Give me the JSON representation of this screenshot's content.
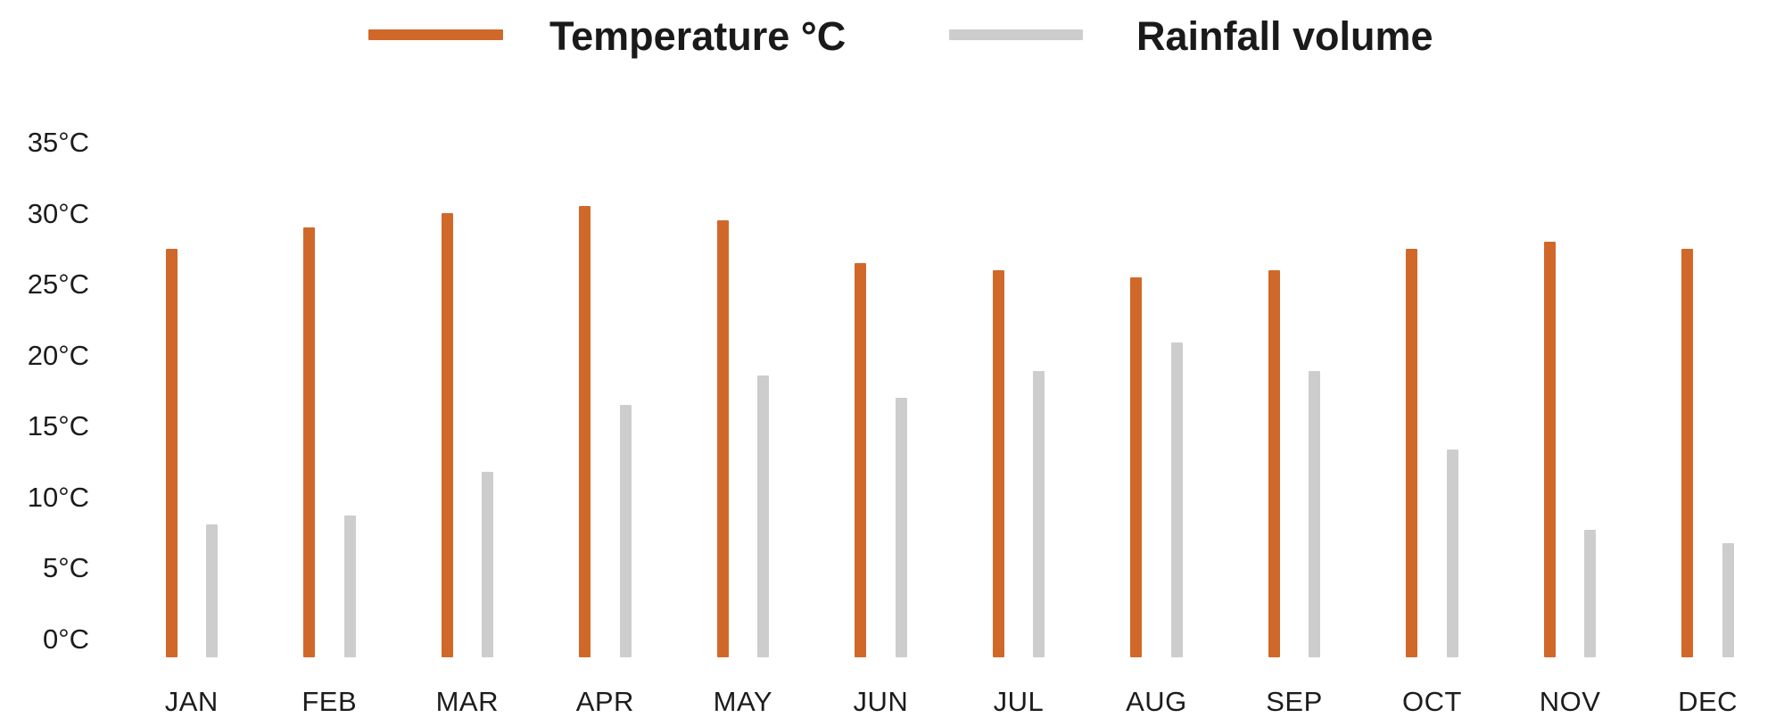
{
  "chart_data": {
    "type": "bar",
    "title": "",
    "categories": [
      "JAN",
      "FEB",
      "MAR",
      "APR",
      "MAY",
      "JUN",
      "JUL",
      "AUG",
      "SEP",
      "OCT",
      "NOV",
      "DEC"
    ],
    "series": [
      {
        "name": "Temperature °C",
        "color": "#d0682a",
        "unit": "°C",
        "values": [
          27.5,
          29,
          30,
          30.5,
          29.5,
          26.5,
          26,
          25.5,
          26,
          27.5,
          28,
          27.5
        ]
      },
      {
        "name": "Rainfall volume",
        "color": "#cdcdcd",
        "unit": "equivalent reading on the left temperature axis (no rainfall axis is shown)",
        "values": [
          8.1,
          8.7,
          11.8,
          16.5,
          18.6,
          17,
          18.9,
          20.9,
          18.9,
          13.4,
          7.7,
          6.8
        ]
      }
    ],
    "y_axis": {
      "tick_labels_bottom_to_top": [
        "0°C",
        "5°C",
        "10°C",
        "15°C",
        "20°C",
        "25°C",
        "30°C",
        "35°C"
      ],
      "range": [
        0,
        35
      ],
      "grid": "off"
    },
    "legend_position": "top-center"
  }
}
